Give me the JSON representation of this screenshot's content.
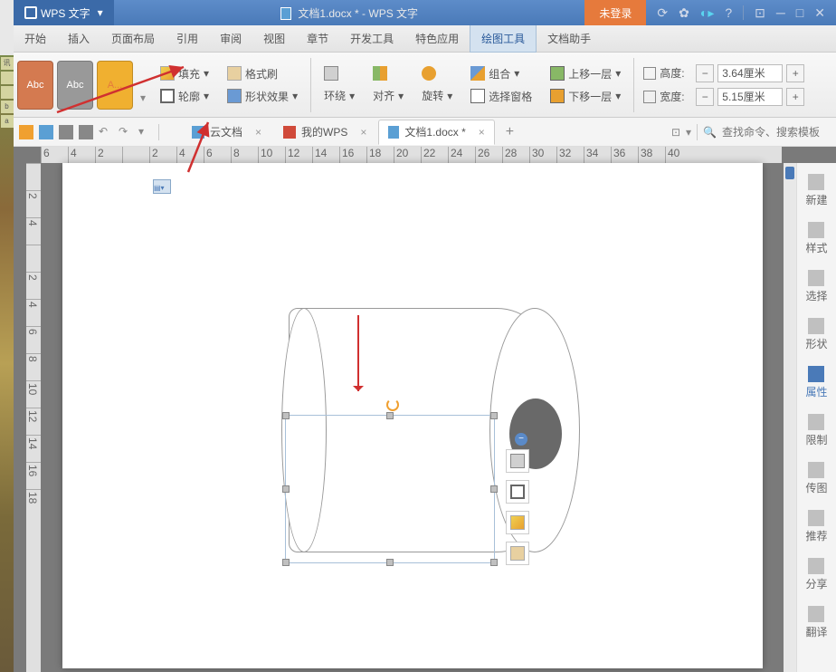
{
  "app": {
    "name": "WPS 文字",
    "title": "文档1.docx * - WPS 文字",
    "login": "未登录"
  },
  "menu": [
    "开始",
    "插入",
    "页面布局",
    "引用",
    "审阅",
    "视图",
    "章节",
    "开发工具",
    "特色应用",
    "绘图工具",
    "文档助手"
  ],
  "active_menu": 9,
  "abc": [
    "Abc",
    "Abc",
    "A..."
  ],
  "ribbon": {
    "fill": "填充",
    "brush": "格式刷",
    "outline": "轮廓",
    "effect": "形状效果",
    "wrap": "环绕",
    "align": "对齐",
    "rotate": "旋转",
    "group": "组合",
    "pane": "选择窗格",
    "up": "上移一层",
    "down": "下移一层",
    "height": "高度:",
    "width": "宽度:",
    "h_val": "3.64厘米",
    "w_val": "5.15厘米"
  },
  "tabs": {
    "cloud": "云文档",
    "wps": "我的WPS",
    "doc": "文档1.docx *"
  },
  "search": {
    "ph": "查找命令、搜索模板"
  },
  "sidebar": [
    {
      "label": "新建",
      "active": false
    },
    {
      "label": "样式",
      "active": false
    },
    {
      "label": "选择",
      "active": false
    },
    {
      "label": "形状",
      "active": false
    },
    {
      "label": "属性",
      "active": true
    },
    {
      "label": "限制",
      "active": false
    },
    {
      "label": "传图",
      "active": false
    },
    {
      "label": "推荐",
      "active": false
    },
    {
      "label": "分享",
      "active": false
    },
    {
      "label": "翻译",
      "active": false
    }
  ],
  "ruler_h": [
    "6",
    "4",
    "2",
    "",
    "2",
    "4",
    "6",
    "8",
    "10",
    "12",
    "14",
    "16",
    "18",
    "20",
    "22",
    "24",
    "26",
    "28",
    "30",
    "32",
    "34",
    "36",
    "38",
    "40"
  ],
  "ruler_v": [
    "",
    "2",
    "4",
    "",
    "2",
    "4",
    "6",
    "8",
    "10",
    "12",
    "14",
    "16",
    "18"
  ],
  "left_icons": [
    "🗔",
    "b9",
    "a4",
    "",
    "",
    "69",
    "6",
    "",
    "69",
    "5"
  ],
  "colors": {
    "primary": "#4a7ab8",
    "accent": "#e67a3c",
    "arrow": "#d03030",
    "handle": "#c0c0c0",
    "hole": "#696969"
  }
}
